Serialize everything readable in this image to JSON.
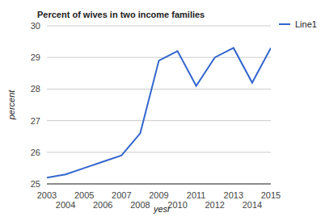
{
  "chart_data": {
    "type": "line",
    "title": "Percent of wives in two income families",
    "x_label": "yesr",
    "y_label": "percent",
    "x": [
      2003,
      2004,
      2005,
      2006,
      2007,
      2008,
      2009,
      2010,
      2011,
      2012,
      2013,
      2014,
      2015
    ],
    "series": [
      {
        "name": "Line1",
        "color": "#3366cc",
        "values": [
          25.2,
          25.3,
          25.5,
          25.7,
          25.9,
          26.6,
          28.9,
          29.2,
          28.1,
          29.0,
          29.3,
          28.2,
          29.3
        ]
      }
    ],
    "xlim": [
      2003,
      2015
    ],
    "xticks": [
      2003,
      2004,
      2005,
      2006,
      2007,
      2008,
      2009,
      2010,
      2011,
      2012,
      2013,
      2014,
      2015
    ],
    "ylim": [
      25,
      30
    ],
    "yticks": [
      25,
      26,
      27,
      28,
      29,
      30
    ],
    "grid": true,
    "legend": "right"
  }
}
